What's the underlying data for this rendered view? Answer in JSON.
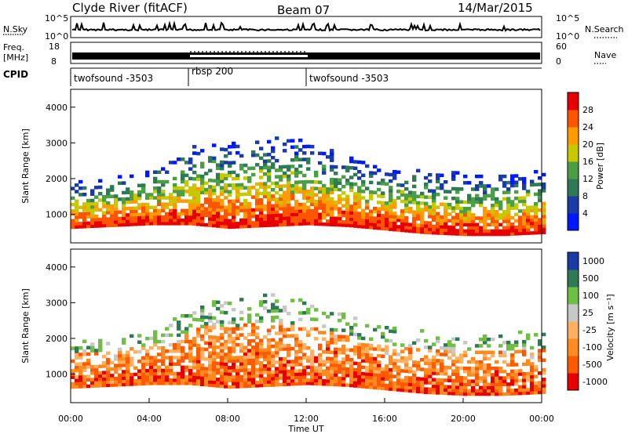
{
  "header": {
    "station": "Clyde River (fitACF)",
    "beam": "Beam 07",
    "date": "14/Mar/2015"
  },
  "nsky_panel": {
    "left_label": "N.Sky",
    "left_tick_top": "10^5",
    "left_tick_bottom": "10^0",
    "right_label": "N.Search",
    "right_tick_top": "10^5",
    "right_tick_bottom": "10^0"
  },
  "freq_panel": {
    "left_label_line1": "Freq.",
    "left_label_line2": "[MHz]",
    "left_tick_top": "18",
    "left_tick_bottom": "8",
    "right_label": "Nave",
    "right_tick_top": "60",
    "right_tick_bottom": "0"
  },
  "cpid_panel": {
    "label": "CPID",
    "segments": [
      {
        "start_hour": 0,
        "end_hour": 6,
        "name": "twofsound -3503"
      },
      {
        "start_hour": 6,
        "end_hour": 12,
        "name": "rbsp 200"
      },
      {
        "start_hour": 12,
        "end_hour": 24,
        "name": "twofsound -3503"
      }
    ]
  },
  "chart_data": [
    {
      "type": "heatmap",
      "panel": "power",
      "ylabel": "Slant Range [km]",
      "ylim": [
        200,
        4500
      ],
      "yticks": [
        "1000",
        "2000",
        "3000",
        "4000"
      ],
      "xlim": [
        0,
        24
      ],
      "colorbar_label": "Power [dB]",
      "colorbar_ticks": [
        "4",
        "8",
        "12",
        "16",
        "20",
        "24",
        "28"
      ],
      "colorbar_range": [
        0,
        32
      ],
      "colors": [
        "#0018ff",
        "#1a3aa6",
        "#2e7a55",
        "#4a9e44",
        "#c8c800",
        "#ff9a00",
        "#ff5500",
        "#e60000"
      ],
      "scatter_band": {
        "hours": [
          0,
          2,
          4,
          6,
          7,
          8,
          10,
          12,
          14,
          16,
          18,
          20,
          22,
          24
        ],
        "lower_km": [
          600,
          650,
          700,
          700,
          650,
          600,
          650,
          700,
          650,
          550,
          450,
          400,
          400,
          450
        ],
        "upper_km": [
          1900,
          2000,
          2200,
          2800,
          3100,
          3000,
          3200,
          3000,
          2600,
          2300,
          2200,
          2100,
          2100,
          2200
        ]
      }
    },
    {
      "type": "heatmap",
      "panel": "velocity",
      "ylabel": "Slant Range [km]",
      "ylim": [
        200,
        4500
      ],
      "yticks": [
        "1000",
        "2000",
        "3000",
        "4000"
      ],
      "xlabel": "Time UT",
      "xticks": [
        "00:00",
        "04:00",
        "08:00",
        "12:00",
        "16:00",
        "20:00",
        "00:00"
      ],
      "xlim": [
        0,
        24
      ],
      "colorbar_label": "Velocity [m s⁻¹]",
      "colorbar_ticks": [
        "1000",
        "500",
        "100",
        "25",
        "-25",
        "-100",
        "-500",
        "-1000"
      ],
      "colors": [
        "#1a3aa6",
        "#2e7a55",
        "#6fbf44",
        "#c8c8c8",
        "#ffb060",
        "#ff8a20",
        "#ff5a00",
        "#e60000"
      ],
      "scatter_band": {
        "hours": [
          0,
          2,
          4,
          6,
          7,
          8,
          10,
          12,
          14,
          16,
          18,
          20,
          22,
          24
        ],
        "lower_km": [
          600,
          650,
          700,
          700,
          650,
          600,
          650,
          700,
          650,
          550,
          450,
          400,
          400,
          450
        ],
        "upper_km": [
          1900,
          2000,
          2200,
          2800,
          3100,
          3000,
          3200,
          3000,
          2600,
          2300,
          2200,
          2100,
          2100,
          2200
        ]
      }
    }
  ]
}
